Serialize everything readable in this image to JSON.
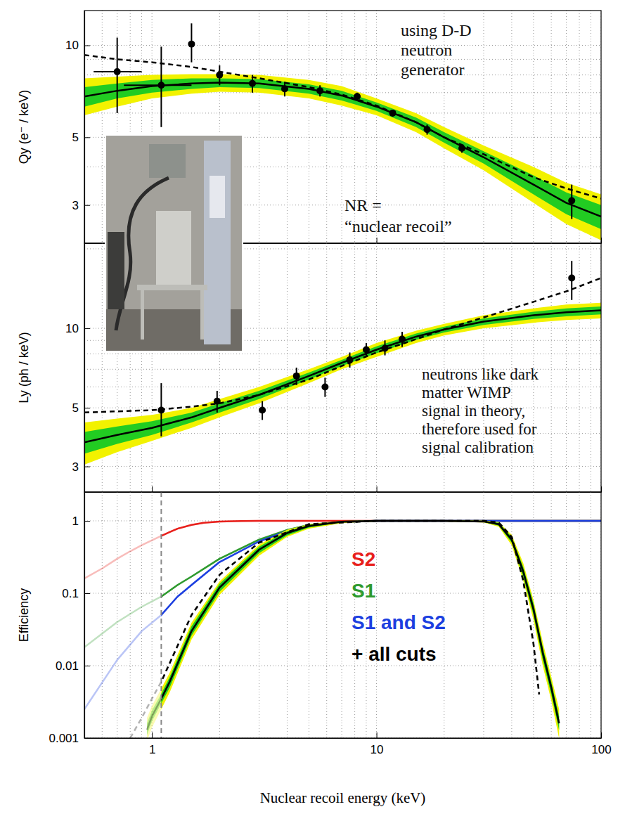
{
  "chart_data": [
    {
      "type": "line",
      "ylabel": "Qy (e⁻ / keV)",
      "xlim": [
        0.5,
        100
      ],
      "xticks": [
        1,
        10,
        100
      ],
      "xticks_minor": [
        0.6,
        0.7,
        0.8,
        0.9,
        2,
        3,
        4,
        5,
        6,
        7,
        8,
        9,
        20,
        30,
        40,
        50,
        60,
        70,
        80,
        90
      ],
      "ylim": [
        2.25,
        13
      ],
      "yticks": [
        3,
        5,
        10
      ],
      "yticks_minor": [
        4,
        6,
        7,
        8,
        9
      ],
      "log": true,
      "grid": true,
      "tick_labels": "y",
      "annotations": [
        {
          "lines": [
            "using D-D",
            "neutron",
            "generator"
          ]
        },
        {
          "lines": [
            "NR =",
            "“nuclear recoil”"
          ]
        }
      ],
      "series": [
        {
          "type": "band",
          "color": "#f2f200",
          "x": [
            0.5,
            0.7,
            1,
            1.5,
            2,
            3,
            5,
            7,
            10,
            15,
            20,
            30,
            50,
            70,
            100
          ],
          "low": [
            5.9,
            6.3,
            6.7,
            6.95,
            7.05,
            7.0,
            6.7,
            6.35,
            5.9,
            5.2,
            4.6,
            3.9,
            3.05,
            2.6,
            2.3
          ],
          "high": [
            7.8,
            7.9,
            8.0,
            8.05,
            8.05,
            8.0,
            7.7,
            7.35,
            6.7,
            6.0,
            5.4,
            4.7,
            4.0,
            3.55,
            3.25
          ]
        },
        {
          "type": "band",
          "color": "#22cc22",
          "x": [
            0.5,
            0.7,
            1,
            1.5,
            2,
            3,
            5,
            7,
            10,
            15,
            20,
            30,
            50,
            70,
            100
          ],
          "low": [
            6.3,
            6.7,
            7.0,
            7.2,
            7.3,
            7.25,
            6.95,
            6.6,
            6.1,
            5.4,
            4.8,
            4.1,
            3.25,
            2.8,
            2.5
          ],
          "high": [
            7.3,
            7.5,
            7.7,
            7.8,
            7.8,
            7.75,
            7.45,
            7.1,
            6.5,
            5.8,
            5.2,
            4.5,
            3.75,
            3.3,
            3.0
          ]
        },
        {
          "type": "line",
          "color": "#000000",
          "line_style": "solid",
          "x": [
            0.5,
            0.7,
            1,
            1.5,
            2,
            3,
            5,
            7,
            10,
            15,
            20,
            30,
            50,
            70,
            100
          ],
          "values": [
            6.8,
            7.1,
            7.35,
            7.5,
            7.55,
            7.5,
            7.2,
            6.85,
            6.3,
            5.6,
            5.0,
            4.3,
            3.5,
            3.05,
            2.75
          ]
        },
        {
          "type": "line",
          "color": "#000000",
          "line_style": "dashed",
          "x": [
            0.5,
            0.7,
            1,
            1.5,
            2,
            3,
            5,
            7,
            10,
            15,
            20,
            30,
            50,
            70,
            100
          ],
          "values": [
            9.3,
            9.0,
            8.8,
            8.5,
            8.2,
            7.8,
            7.3,
            6.9,
            6.35,
            5.6,
            5.0,
            4.4,
            3.7,
            3.4,
            3.15
          ]
        },
        {
          "type": "scatter",
          "color": "#000000",
          "marker": "circle",
          "x": [
            0.7,
            1.1,
            1.5,
            2.0,
            2.8,
            3.9,
            5.6,
            8.2,
            11.8,
            16.8,
            24,
            74
          ],
          "values": [
            8.2,
            7.4,
            10.1,
            8.0,
            7.5,
            7.2,
            7.1,
            6.8,
            6.0,
            5.3,
            4.6,
            3.1
          ],
          "y_low": [
            6.0,
            5.4,
            8.8,
            7.4,
            7.0,
            6.8,
            6.8,
            6.6,
            5.85,
            5.1,
            4.45,
            2.7
          ],
          "y_high": [
            10.6,
            9.9,
            11.8,
            8.6,
            8.0,
            7.6,
            7.4,
            7.0,
            6.15,
            5.5,
            4.75,
            3.5
          ],
          "x_low": [
            0.55,
            0.75,
            null,
            null,
            null,
            null,
            null,
            null,
            null,
            null,
            null,
            null
          ],
          "x_high": [
            0.9,
            1.5,
            null,
            null,
            null,
            null,
            null,
            null,
            null,
            null,
            null,
            null
          ]
        }
      ]
    },
    {
      "type": "line",
      "ylabel": "Ly (ph / keV)",
      "xlim": [
        0.5,
        100
      ],
      "xticks": [
        1,
        10,
        100
      ],
      "xticks_minor": [
        0.6,
        0.7,
        0.8,
        0.9,
        2,
        3,
        4,
        5,
        6,
        7,
        8,
        9,
        20,
        30,
        40,
        50,
        60,
        70,
        80,
        90
      ],
      "ylim": [
        2.4,
        21
      ],
      "yticks": [
        3,
        5,
        10
      ],
      "yticks_minor": [
        4,
        6,
        7,
        8,
        9,
        20
      ],
      "log": true,
      "grid": true,
      "tick_labels": "y",
      "annotations": [
        {
          "lines": [
            "neutrons like dark",
            "matter WIMP",
            "signal in theory,",
            "therefore used for",
            "signal calibration"
          ]
        }
      ],
      "series": [
        {
          "type": "band",
          "color": "#f2f200",
          "x": [
            0.5,
            0.7,
            1,
            1.5,
            2,
            3,
            5,
            7,
            10,
            15,
            20,
            30,
            50,
            70,
            100
          ],
          "low": [
            3.05,
            3.4,
            3.75,
            4.2,
            4.6,
            5.2,
            6.2,
            7.0,
            7.8,
            8.8,
            9.4,
            10.0,
            10.5,
            10.75,
            10.9
          ],
          "high": [
            4.4,
            4.55,
            4.7,
            5.0,
            5.4,
            6.0,
            7.0,
            7.8,
            8.8,
            9.8,
            10.4,
            11.2,
            11.9,
            12.3,
            12.5
          ]
        },
        {
          "type": "band",
          "color": "#22cc22",
          "x": [
            0.5,
            0.7,
            1,
            1.5,
            2,
            3,
            5,
            7,
            10,
            15,
            20,
            30,
            50,
            70,
            100
          ],
          "low": [
            3.35,
            3.65,
            3.95,
            4.4,
            4.8,
            5.4,
            6.4,
            7.2,
            8.05,
            9.05,
            9.65,
            10.3,
            10.85,
            11.1,
            11.3
          ],
          "high": [
            4.05,
            4.25,
            4.45,
            4.8,
            5.2,
            5.8,
            6.8,
            7.6,
            8.55,
            9.55,
            10.15,
            10.9,
            11.55,
            11.9,
            12.1
          ]
        },
        {
          "type": "line",
          "color": "#000000",
          "line_style": "solid",
          "x": [
            0.5,
            0.7,
            1,
            1.5,
            2,
            3,
            5,
            7,
            10,
            15,
            20,
            30,
            50,
            70,
            100
          ],
          "values": [
            3.7,
            3.95,
            4.2,
            4.6,
            5.0,
            5.6,
            6.6,
            7.4,
            8.3,
            9.3,
            9.9,
            10.6,
            11.2,
            11.5,
            11.7
          ]
        },
        {
          "type": "line",
          "color": "#000000",
          "line_style": "dashed",
          "x": [
            0.5,
            0.7,
            1,
            1.5,
            2,
            3,
            5,
            7,
            10,
            15,
            20,
            30,
            50,
            70,
            100
          ],
          "values": [
            4.8,
            4.85,
            4.9,
            5.05,
            5.2,
            5.6,
            6.4,
            7.2,
            8.1,
            9.1,
            9.9,
            11.0,
            12.6,
            13.8,
            15.5
          ]
        },
        {
          "type": "scatter",
          "color": "#000000",
          "marker": "circle",
          "x": [
            1.1,
            1.95,
            3.1,
            4.4,
            5.9,
            7.6,
            9.0,
            10.9,
            13.0,
            74
          ],
          "values": [
            4.9,
            5.3,
            4.9,
            6.6,
            6.0,
            7.6,
            8.3,
            8.4,
            9.1,
            15.5
          ],
          "y_low": [
            3.9,
            4.8,
            4.5,
            6.1,
            5.5,
            7.1,
            7.8,
            7.9,
            8.5,
            12.8
          ],
          "y_high": [
            6.2,
            5.8,
            5.3,
            7.1,
            6.5,
            8.1,
            8.8,
            9.0,
            9.7,
            18.0
          ]
        }
      ]
    },
    {
      "type": "line",
      "xlabel": "Nuclear recoil energy (keV)",
      "ylabel": "Efficiency",
      "xlim": [
        0.5,
        100
      ],
      "xticks": [
        1,
        10,
        100
      ],
      "xticks_minor": [
        0.6,
        0.7,
        0.8,
        0.9,
        2,
        3,
        4,
        5,
        6,
        7,
        8,
        9,
        20,
        30,
        40,
        50,
        60,
        70,
        80,
        90
      ],
      "ylim": [
        0.001,
        2.5
      ],
      "yticks": [
        0.001,
        0.01,
        0.1,
        1
      ],
      "log": true,
      "grid": true,
      "legend": "center",
      "threshold": 1.1,
      "series": [
        {
          "name": "S2",
          "type": "line",
          "color": "#e8201c",
          "line_style": "solid",
          "x": [
            0.5,
            0.6,
            0.7,
            0.8,
            0.9,
            1,
            1.1,
            1.2,
            1.3,
            1.5,
            1.7,
            2,
            2.5,
            3,
            100
          ],
          "values": [
            0.16,
            0.22,
            0.3,
            0.38,
            0.46,
            0.54,
            0.62,
            0.7,
            0.78,
            0.88,
            0.94,
            0.98,
            0.995,
            1,
            1
          ]
        },
        {
          "name": "S1",
          "type": "line",
          "color": "#2e9a2e",
          "line_style": "solid",
          "x": [
            0.5,
            0.7,
            0.9,
            1.1,
            1.3,
            1.5,
            2,
            3,
            4,
            5,
            7,
            10,
            100
          ],
          "values": [
            0.018,
            0.04,
            0.065,
            0.09,
            0.13,
            0.17,
            0.3,
            0.55,
            0.75,
            0.88,
            0.97,
            1,
            1
          ]
        },
        {
          "name": "S1 and S2",
          "type": "line",
          "color": "#1c3fe0",
          "line_style": "solid",
          "x": [
            0.5,
            0.7,
            0.9,
            1.1,
            1.3,
            1.5,
            2,
            3,
            4,
            5,
            7,
            10,
            100
          ],
          "values": [
            0.0025,
            0.012,
            0.03,
            0.05,
            0.09,
            0.13,
            0.27,
            0.52,
            0.72,
            0.86,
            0.96,
            1,
            1
          ]
        },
        {
          "type": "band",
          "color": "#f2f200",
          "x": [
            0.95,
            1.0,
            1.1,
            1.2,
            1.5,
            2,
            3,
            4,
            5,
            7,
            10,
            20,
            30,
            35,
            40,
            45,
            50,
            55,
            60,
            65
          ],
          "low": [
            0.0009,
            0.0014,
            0.0025,
            0.0043,
            0.023,
            0.095,
            0.33,
            0.6,
            0.78,
            0.93,
            0.98,
            0.98,
            0.95,
            0.83,
            0.46,
            0.15,
            0.043,
            0.01,
            0.0033,
            0.001
          ],
          "high": [
            0.0019,
            0.0028,
            0.0048,
            0.008,
            0.039,
            0.145,
            0.47,
            0.75,
            0.9,
            0.99,
            1.02,
            1.02,
            1.01,
            0.96,
            0.64,
            0.26,
            0.08,
            0.021,
            0.007,
            0.0025
          ]
        },
        {
          "type": "band",
          "color": "#22cc22",
          "x": [
            0.95,
            1.0,
            1.1,
            1.2,
            1.5,
            2,
            3,
            4,
            5,
            7,
            10,
            20,
            30,
            35,
            40,
            45,
            50,
            55,
            60,
            65
          ],
          "low": [
            0.0011,
            0.0017,
            0.003,
            0.005,
            0.026,
            0.105,
            0.36,
            0.63,
            0.81,
            0.95,
            0.99,
            0.99,
            0.96,
            0.86,
            0.5,
            0.17,
            0.05,
            0.012,
            0.004,
            0.0013
          ],
          "high": [
            0.0016,
            0.0024,
            0.0041,
            0.007,
            0.035,
            0.135,
            0.44,
            0.72,
            0.88,
            0.98,
            1.01,
            1.01,
            1.0,
            0.94,
            0.6,
            0.23,
            0.072,
            0.018,
            0.006,
            0.002
          ]
        },
        {
          "name": "+ all cuts",
          "type": "line",
          "color": "#000000",
          "line_style": "solid",
          "x": [
            0.95,
            1.0,
            1.1,
            1.2,
            1.5,
            2,
            3,
            4,
            5,
            7,
            10,
            20,
            30,
            35,
            40,
            45,
            50,
            55,
            60,
            65
          ],
          "values": [
            0.0013,
            0.002,
            0.0035,
            0.006,
            0.03,
            0.12,
            0.4,
            0.68,
            0.85,
            0.97,
            1,
            1,
            0.98,
            0.9,
            0.55,
            0.2,
            0.06,
            0.015,
            0.005,
            0.0016
          ]
        },
        {
          "type": "line",
          "color": "#000000",
          "line_style": "dashed",
          "x": [
            0.8,
            0.9,
            1,
            1.1,
            1.5,
            2,
            3,
            5,
            10,
            30,
            35,
            40,
            45,
            50,
            53
          ],
          "values": [
            0.001,
            0.0019,
            0.0035,
            0.006,
            0.05,
            0.18,
            0.5,
            0.9,
            1,
            1,
            0.95,
            0.6,
            0.15,
            0.02,
            0.004
          ]
        }
      ]
    }
  ]
}
